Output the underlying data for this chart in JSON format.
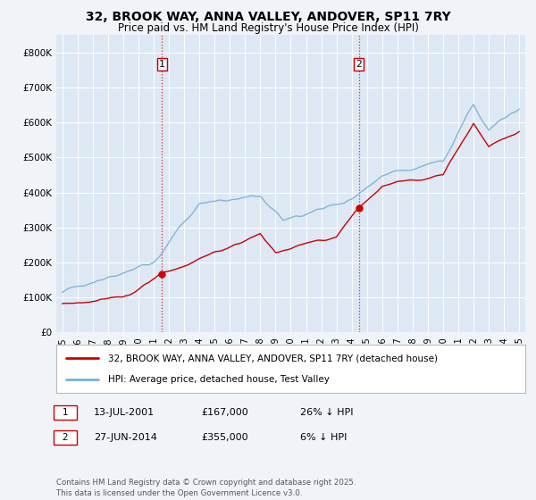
{
  "title": "32, BROOK WAY, ANNA VALLEY, ANDOVER, SP11 7RY",
  "subtitle": "Price paid vs. HM Land Registry's House Price Index (HPI)",
  "background_color": "#f0f4f8",
  "plot_background": "#dde8f4",
  "red_color": "#cc0000",
  "blue_color": "#7aafd4",
  "ylim": [
    0,
    850000
  ],
  "yticks": [
    0,
    100000,
    200000,
    300000,
    400000,
    500000,
    600000,
    700000,
    800000
  ],
  "ytick_labels": [
    "£0",
    "£100K",
    "£200K",
    "£300K",
    "£400K",
    "£500K",
    "£600K",
    "£700K",
    "£800K"
  ],
  "legend_entry1": "32, BROOK WAY, ANNA VALLEY, ANDOVER, SP11 7RY (detached house)",
  "legend_entry2": "HPI: Average price, detached house, Test Valley",
  "note1_date": "13-JUL-2001",
  "note1_price": "£167,000",
  "note1_hpi": "26% ↓ HPI",
  "note2_date": "27-JUN-2014",
  "note2_price": "£355,000",
  "note2_hpi": "6% ↓ HPI",
  "footer": "Contains HM Land Registry data © Crown copyright and database right 2025.\nThis data is licensed under the Open Government Licence v3.0.",
  "sale1_year": 2001.54,
  "sale1_price": 167000,
  "sale2_year": 2014.46,
  "sale2_price": 355000
}
